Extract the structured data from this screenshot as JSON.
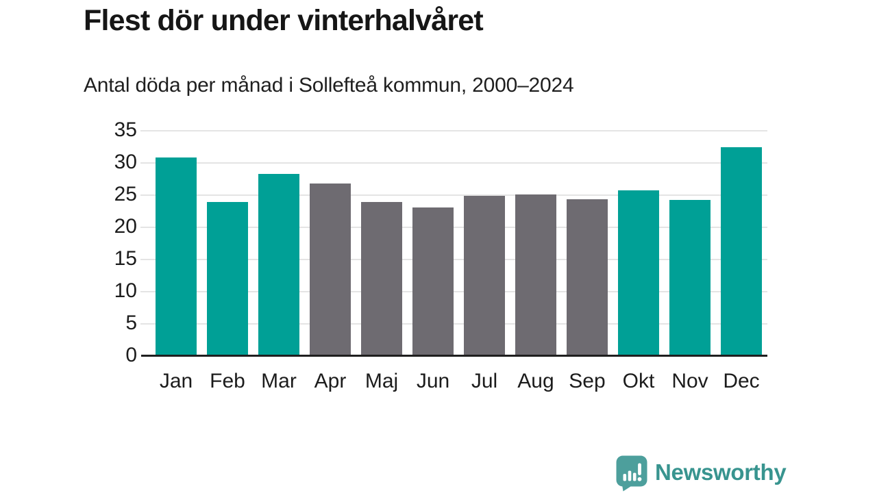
{
  "chart_data": {
    "type": "bar",
    "title": "Flest dör under vinterhalvåret",
    "subtitle": "Antal döda per månad i Sollefteå kommun, 2000–2024",
    "categories": [
      "Jan",
      "Feb",
      "Mar",
      "Apr",
      "Maj",
      "Jun",
      "Jul",
      "Aug",
      "Sep",
      "Okt",
      "Nov",
      "Dec"
    ],
    "values": [
      30.8,
      23.9,
      28.3,
      26.8,
      23.9,
      23.1,
      24.9,
      25.1,
      24.4,
      25.7,
      24.3,
      32.4
    ],
    "bar_colors": [
      "#00a096",
      "#00a096",
      "#00a096",
      "#6e6b71",
      "#6e6b71",
      "#6e6b71",
      "#6e6b71",
      "#6e6b71",
      "#6e6b71",
      "#00a096",
      "#00a096",
      "#00a096"
    ],
    "xlabel": "",
    "ylabel": "",
    "ylim": [
      0,
      35
    ],
    "yticks": [
      0,
      5,
      10,
      15,
      20,
      25,
      30,
      35
    ],
    "grid": true,
    "legend": "none"
  },
  "footer": {
    "brand": "Newsworthy"
  },
  "colors": {
    "accent_teal": "#00a096",
    "neutral_gray": "#6e6b71",
    "gridline": "#e4e4e4",
    "axis_line": "#1f1f1f",
    "logo_bubble": "#4d9f9c",
    "brand_text": "#38948f",
    "text_dark": "#161616"
  }
}
